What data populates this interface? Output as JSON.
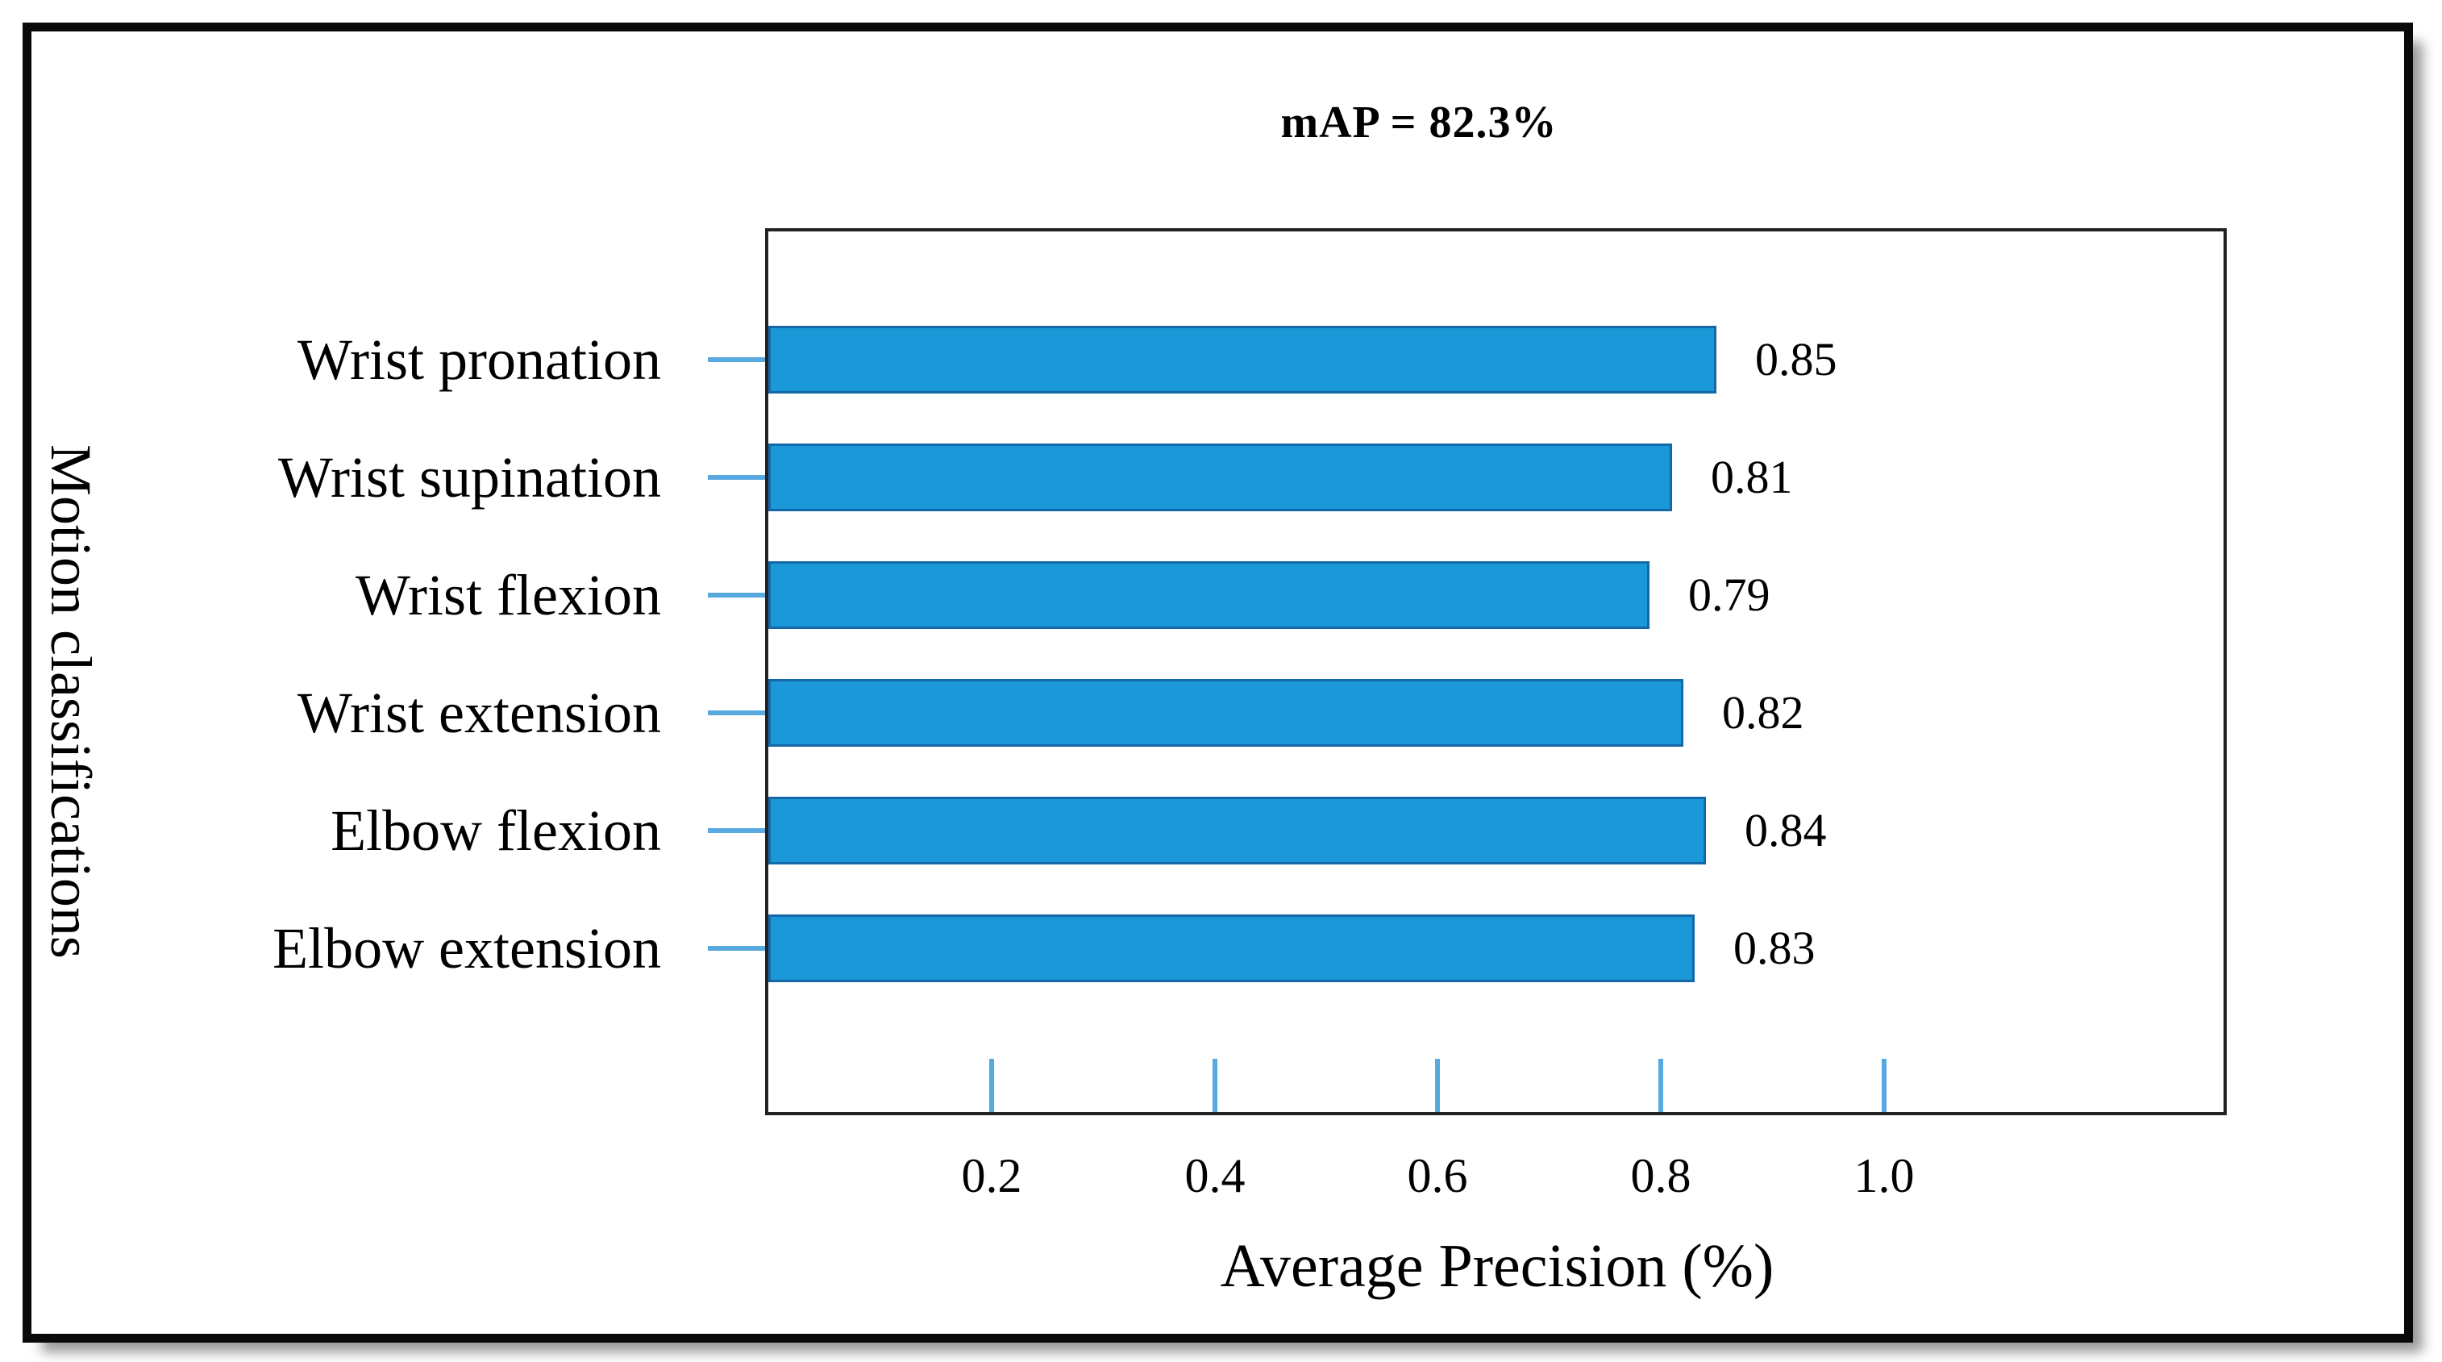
{
  "chart_data": {
    "type": "bar",
    "orientation": "horizontal",
    "title": "mAP = 82.3%",
    "categories": [
      "Wrist pronation",
      "Wrist supination",
      "Wrist flexion",
      "Wrist extension",
      "Elbow flexion",
      "Elbow extension"
    ],
    "values": [
      0.85,
      0.81,
      0.79,
      0.82,
      0.84,
      0.83
    ],
    "value_labels": [
      "0.85",
      "0.81",
      "0.79",
      "0.82",
      "0.84",
      "0.83"
    ],
    "xlabel": "Average Precision (%)",
    "ylabel": "Motion classifications",
    "xticks": [
      0.2,
      0.4,
      0.6,
      0.8,
      1.0
    ],
    "xtick_labels": [
      "0.2",
      "0.4",
      "0.6",
      "0.8",
      "1.0"
    ],
    "xlim": [
      0,
      1.31
    ],
    "grid": false,
    "legend": "none",
    "colors": {
      "bar_fill": "#1B98D8",
      "bar_border": "#1568A8",
      "tick_mark": "#57A9E0",
      "axis_frame": "#222222",
      "text": "#000000"
    }
  }
}
